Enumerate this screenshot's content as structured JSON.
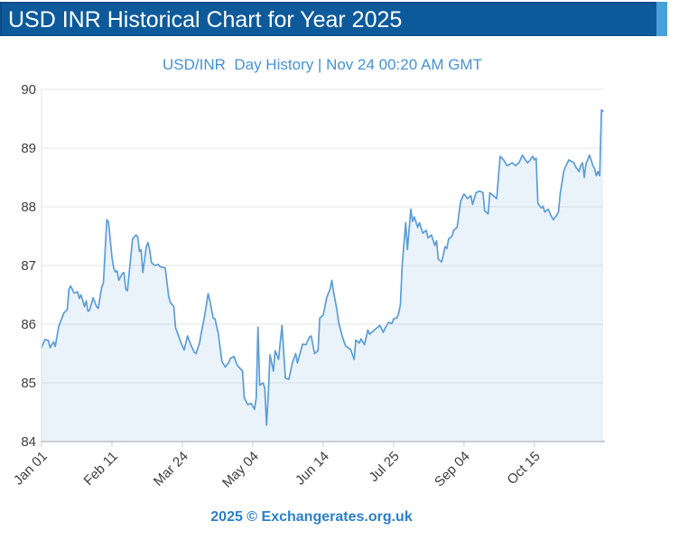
{
  "header": {
    "title": "USD INR Historical Chart for Year 2025",
    "bar_color": "#0d5a9b",
    "accent_color": "#49a1da"
  },
  "footer": {
    "copyright": "2025 © Exchangerates.org.uk"
  },
  "chart_data": {
    "type": "area",
    "title": "USD/INR  Day History | Nov 24 00:20 AM GMT",
    "xlabel": "",
    "ylabel": "",
    "ylim": [
      84,
      90
    ],
    "yticks": [
      90,
      89,
      88,
      87,
      86,
      85,
      84
    ],
    "x_range": [
      "2025-01-01",
      "2025-11-24"
    ],
    "xticks": [
      {
        "label": "Jan 01",
        "date": "2025-01-01"
      },
      {
        "label": "Feb 11",
        "date": "2025-02-11"
      },
      {
        "label": "Mar 24",
        "date": "2025-03-24"
      },
      {
        "label": "May 04",
        "date": "2025-05-04"
      },
      {
        "label": "Jun 14",
        "date": "2025-06-14"
      },
      {
        "label": "Jul 25",
        "date": "2025-07-25"
      },
      {
        "label": "Sep 04",
        "date": "2025-09-04"
      },
      {
        "label": "Oct 15",
        "date": "2025-10-15"
      }
    ],
    "grid": "horizontal",
    "legend": "none",
    "line_color": "#5b9dd9",
    "fill_color": "#e8f1fa",
    "grid_color": "#e6e6e6",
    "axis_color": "#c9ced4",
    "series_name": "USD/INR",
    "points": [
      [
        "2025-01-01",
        85.6
      ],
      [
        "2025-01-03",
        85.74
      ],
      [
        "2025-01-05",
        85.72
      ],
      [
        "2025-01-06",
        85.6
      ],
      [
        "2025-01-08",
        85.7
      ],
      [
        "2025-01-09",
        85.62
      ],
      [
        "2025-01-11",
        85.96
      ],
      [
        "2025-01-14",
        86.19
      ],
      [
        "2025-01-16",
        86.25
      ],
      [
        "2025-01-17",
        86.6
      ],
      [
        "2025-01-18",
        86.65
      ],
      [
        "2025-01-20",
        86.53
      ],
      [
        "2025-01-22",
        86.55
      ],
      [
        "2025-01-23",
        86.44
      ],
      [
        "2025-01-24",
        86.5
      ],
      [
        "2025-01-26",
        86.3
      ],
      [
        "2025-01-27",
        86.4
      ],
      [
        "2025-01-28",
        86.22
      ],
      [
        "2025-01-29",
        86.24
      ],
      [
        "2025-01-31",
        86.45
      ],
      [
        "2025-02-02",
        86.3
      ],
      [
        "2025-02-03",
        86.27
      ],
      [
        "2025-02-05",
        86.63
      ],
      [
        "2025-02-06",
        86.7
      ],
      [
        "2025-02-08",
        87.78
      ],
      [
        "2025-02-09",
        87.74
      ],
      [
        "2025-02-11",
        87.14
      ],
      [
        "2025-02-12",
        86.96
      ],
      [
        "2025-02-13",
        86.89
      ],
      [
        "2025-02-14",
        86.91
      ],
      [
        "2025-02-15",
        86.75
      ],
      [
        "2025-02-17",
        86.86
      ],
      [
        "2025-02-18",
        86.88
      ],
      [
        "2025-02-19",
        86.6
      ],
      [
        "2025-02-20",
        86.57
      ],
      [
        "2025-02-23",
        87.45
      ],
      [
        "2025-02-25",
        87.52
      ],
      [
        "2025-02-26",
        87.49
      ],
      [
        "2025-02-27",
        87.24
      ],
      [
        "2025-02-28",
        87.27
      ],
      [
        "2025-03-01",
        86.88
      ],
      [
        "2025-03-03",
        87.32
      ],
      [
        "2025-03-04",
        87.39
      ],
      [
        "2025-03-05",
        87.26
      ],
      [
        "2025-03-06",
        87.05
      ],
      [
        "2025-03-08",
        87.0
      ],
      [
        "2025-03-10",
        87.02
      ],
      [
        "2025-03-11",
        86.98
      ],
      [
        "2025-03-14",
        86.96
      ],
      [
        "2025-03-16",
        86.47
      ],
      [
        "2025-03-17",
        86.37
      ],
      [
        "2025-03-19",
        86.3
      ],
      [
        "2025-03-20",
        85.94
      ],
      [
        "2025-03-21",
        85.86
      ],
      [
        "2025-03-23",
        85.7
      ],
      [
        "2025-03-25",
        85.56
      ],
      [
        "2025-03-26",
        85.68
      ],
      [
        "2025-03-27",
        85.8
      ],
      [
        "2025-03-29",
        85.64
      ],
      [
        "2025-03-31",
        85.52
      ],
      [
        "2025-04-01",
        85.5
      ],
      [
        "2025-04-03",
        85.68
      ],
      [
        "2025-04-04",
        85.85
      ],
      [
        "2025-04-06",
        86.15
      ],
      [
        "2025-04-08",
        86.52
      ],
      [
        "2025-04-09",
        86.4
      ],
      [
        "2025-04-11",
        86.1
      ],
      [
        "2025-04-12",
        86.09
      ],
      [
        "2025-04-14",
        85.83
      ],
      [
        "2025-04-16",
        85.37
      ],
      [
        "2025-04-18",
        85.27
      ],
      [
        "2025-04-20",
        85.35
      ],
      [
        "2025-04-21",
        85.42
      ],
      [
        "2025-04-23",
        85.45
      ],
      [
        "2025-04-25",
        85.3
      ],
      [
        "2025-04-28",
        85.2
      ],
      [
        "2025-04-29",
        84.75
      ],
      [
        "2025-05-01",
        84.63
      ],
      [
        "2025-05-03",
        84.65
      ],
      [
        "2025-05-05",
        84.55
      ],
      [
        "2025-05-06",
        84.75
      ],
      [
        "2025-05-07",
        85.95
      ],
      [
        "2025-05-08",
        84.96
      ],
      [
        "2025-05-10",
        85.0
      ],
      [
        "2025-05-11",
        84.9
      ],
      [
        "2025-05-12",
        84.28
      ],
      [
        "2025-05-13",
        84.8
      ],
      [
        "2025-05-14",
        85.48
      ],
      [
        "2025-05-16",
        85.2
      ],
      [
        "2025-05-17",
        85.55
      ],
      [
        "2025-05-19",
        85.4
      ],
      [
        "2025-05-21",
        85.98
      ],
      [
        "2025-05-23",
        85.08
      ],
      [
        "2025-05-25",
        85.06
      ],
      [
        "2025-05-27",
        85.34
      ],
      [
        "2025-05-29",
        85.5
      ],
      [
        "2025-05-30",
        85.34
      ],
      [
        "2025-06-02",
        85.66
      ],
      [
        "2025-06-04",
        85.65
      ],
      [
        "2025-06-06",
        85.78
      ],
      [
        "2025-06-07",
        85.8
      ],
      [
        "2025-06-09",
        85.5
      ],
      [
        "2025-06-11",
        85.55
      ],
      [
        "2025-06-12",
        86.1
      ],
      [
        "2025-06-14",
        86.16
      ],
      [
        "2025-06-16",
        86.45
      ],
      [
        "2025-06-18",
        86.6
      ],
      [
        "2025-06-19",
        86.75
      ],
      [
        "2025-06-20",
        86.55
      ],
      [
        "2025-06-22",
        86.24
      ],
      [
        "2025-06-23",
        86.03
      ],
      [
        "2025-06-25",
        85.8
      ],
      [
        "2025-06-27",
        85.63
      ],
      [
        "2025-06-30",
        85.57
      ],
      [
        "2025-07-02",
        85.4
      ],
      [
        "2025-07-03",
        85.73
      ],
      [
        "2025-07-05",
        85.68
      ],
      [
        "2025-07-06",
        85.75
      ],
      [
        "2025-07-08",
        85.65
      ],
      [
        "2025-07-10",
        85.9
      ],
      [
        "2025-07-11",
        85.83
      ],
      [
        "2025-07-13",
        85.88
      ],
      [
        "2025-07-15",
        85.93
      ],
      [
        "2025-07-17",
        85.98
      ],
      [
        "2025-07-19",
        85.86
      ],
      [
        "2025-07-20",
        85.93
      ],
      [
        "2025-07-22",
        86.03
      ],
      [
        "2025-07-24",
        86.01
      ],
      [
        "2025-07-25",
        86.09
      ],
      [
        "2025-07-27",
        86.11
      ],
      [
        "2025-07-28",
        86.19
      ],
      [
        "2025-07-29",
        86.34
      ],
      [
        "2025-07-30",
        87.0
      ],
      [
        "2025-08-01",
        87.73
      ],
      [
        "2025-08-02",
        87.27
      ],
      [
        "2025-08-04",
        87.96
      ],
      [
        "2025-08-05",
        87.75
      ],
      [
        "2025-08-06",
        87.83
      ],
      [
        "2025-08-08",
        87.65
      ],
      [
        "2025-08-09",
        87.73
      ],
      [
        "2025-08-11",
        87.55
      ],
      [
        "2025-08-13",
        87.6
      ],
      [
        "2025-08-14",
        87.47
      ],
      [
        "2025-08-16",
        87.52
      ],
      [
        "2025-08-18",
        87.34
      ],
      [
        "2025-08-19",
        87.42
      ],
      [
        "2025-08-20",
        87.11
      ],
      [
        "2025-08-22",
        87.06
      ],
      [
        "2025-08-24",
        87.32
      ],
      [
        "2025-08-25",
        87.29
      ],
      [
        "2025-08-26",
        87.45
      ],
      [
        "2025-08-28",
        87.5
      ],
      [
        "2025-08-29",
        87.6
      ],
      [
        "2025-08-31",
        87.65
      ],
      [
        "2025-09-02",
        88.09
      ],
      [
        "2025-09-04",
        88.22
      ],
      [
        "2025-09-06",
        88.14
      ],
      [
        "2025-09-08",
        88.19
      ],
      [
        "2025-09-09",
        88.04
      ],
      [
        "2025-09-11",
        88.24
      ],
      [
        "2025-09-13",
        88.27
      ],
      [
        "2025-09-15",
        88.24
      ],
      [
        "2025-09-16",
        87.93
      ],
      [
        "2025-09-18",
        87.88
      ],
      [
        "2025-09-19",
        88.24
      ],
      [
        "2025-09-21",
        88.19
      ],
      [
        "2025-09-23",
        88.14
      ],
      [
        "2025-09-25",
        88.86
      ],
      [
        "2025-09-27",
        88.8
      ],
      [
        "2025-09-29",
        88.7
      ],
      [
        "2025-10-01",
        88.73
      ],
      [
        "2025-10-02",
        88.75
      ],
      [
        "2025-10-04",
        88.7
      ],
      [
        "2025-10-06",
        88.75
      ],
      [
        "2025-10-08",
        88.88
      ],
      [
        "2025-10-09",
        88.83
      ],
      [
        "2025-10-11",
        88.75
      ],
      [
        "2025-10-12",
        88.78
      ],
      [
        "2025-10-14",
        88.86
      ],
      [
        "2025-10-15",
        88.8
      ],
      [
        "2025-10-16",
        88.83
      ],
      [
        "2025-10-17",
        88.06
      ],
      [
        "2025-10-19",
        87.98
      ],
      [
        "2025-10-20",
        88.01
      ],
      [
        "2025-10-21",
        87.91
      ],
      [
        "2025-10-23",
        87.96
      ],
      [
        "2025-10-25",
        87.83
      ],
      [
        "2025-10-26",
        87.78
      ],
      [
        "2025-10-28",
        87.86
      ],
      [
        "2025-10-29",
        87.91
      ],
      [
        "2025-10-30",
        88.22
      ],
      [
        "2025-11-01",
        88.6
      ],
      [
        "2025-11-02",
        88.68
      ],
      [
        "2025-11-04",
        88.8
      ],
      [
        "2025-11-05",
        88.78
      ],
      [
        "2025-11-07",
        88.75
      ],
      [
        "2025-11-08",
        88.68
      ],
      [
        "2025-11-10",
        88.6
      ],
      [
        "2025-11-11",
        88.71
      ],
      [
        "2025-11-12",
        88.75
      ],
      [
        "2025-11-13",
        88.5
      ],
      [
        "2025-11-14",
        88.73
      ],
      [
        "2025-11-15",
        88.8
      ],
      [
        "2025-11-16",
        88.88
      ],
      [
        "2025-11-17",
        88.8
      ],
      [
        "2025-11-18",
        88.7
      ],
      [
        "2025-11-19",
        88.65
      ],
      [
        "2025-11-20",
        88.53
      ],
      [
        "2025-11-21",
        88.6
      ],
      [
        "2025-11-22",
        88.53
      ],
      [
        "2025-11-23",
        89.65
      ],
      [
        "2025-11-24",
        89.63
      ]
    ]
  }
}
